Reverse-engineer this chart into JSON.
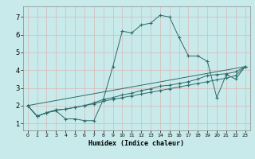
{
  "title": "",
  "xlabel": "Humidex (Indice chaleur)",
  "bg_color": "#c8eaea",
  "line_color": "#2e6b6b",
  "grid_color_major": "#d8b8b8",
  "xlim": [
    -0.5,
    23.5
  ],
  "ylim": [
    0.6,
    7.6
  ],
  "xtick_labels": [
    "0",
    "1",
    "2",
    "3",
    "4",
    "5",
    "6",
    "7",
    "8",
    "9",
    "10",
    "11",
    "12",
    "13",
    "14",
    "15",
    "16",
    "17",
    "18",
    "19",
    "20",
    "21",
    "22",
    "23"
  ],
  "yticks": [
    1,
    2,
    3,
    4,
    5,
    6,
    7
  ],
  "series1_x": [
    0,
    1,
    2,
    3,
    4,
    5,
    6,
    7,
    8,
    9,
    10,
    11,
    12,
    13,
    14,
    15,
    16,
    17,
    18,
    19,
    20,
    21,
    22,
    23
  ],
  "series1_y": [
    2.0,
    1.4,
    1.6,
    1.7,
    1.25,
    1.25,
    1.15,
    1.15,
    2.35,
    4.2,
    6.2,
    6.1,
    6.55,
    6.65,
    7.1,
    7.0,
    5.85,
    4.8,
    4.8,
    4.5,
    2.45,
    3.75,
    3.5,
    4.2
  ],
  "series2_x": [
    0,
    1,
    2,
    3,
    4,
    5,
    6,
    7,
    8,
    9,
    10,
    11,
    12,
    13,
    14,
    15,
    16,
    17,
    18,
    19,
    20,
    21,
    22,
    23
  ],
  "series2_y": [
    2.0,
    1.4,
    1.6,
    1.75,
    1.8,
    1.9,
    2.0,
    2.15,
    2.35,
    2.45,
    2.6,
    2.7,
    2.85,
    2.95,
    3.1,
    3.15,
    3.25,
    3.35,
    3.5,
    3.7,
    3.75,
    3.8,
    3.9,
    4.2
  ],
  "series3_x": [
    0,
    1,
    2,
    3,
    4,
    5,
    6,
    7,
    8,
    9,
    10,
    11,
    12,
    13,
    14,
    15,
    16,
    17,
    18,
    19,
    20,
    21,
    22,
    23
  ],
  "series3_y": [
    2.0,
    1.4,
    1.6,
    1.75,
    1.8,
    1.9,
    2.0,
    2.1,
    2.25,
    2.35,
    2.45,
    2.55,
    2.65,
    2.75,
    2.85,
    2.95,
    3.05,
    3.15,
    3.25,
    3.35,
    3.45,
    3.55,
    3.7,
    4.2
  ],
  "series4_x": [
    0,
    23
  ],
  "series4_y": [
    2.0,
    4.2
  ]
}
